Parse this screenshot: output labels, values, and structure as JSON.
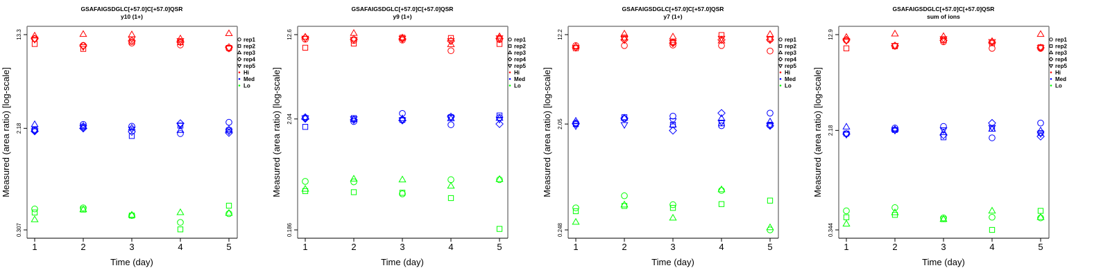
{
  "chart_data": [
    {
      "type": "scatter",
      "title": "GSAFAIGSDGLC[+57.0]C[+57.0]QSR",
      "subtitle": "y10 (1+)",
      "xlabel": "Time (day)",
      "ylabel": "Measured (area ratio) [log-scale]",
      "x_ticks": [
        "1",
        "2",
        "3",
        "4",
        "5"
      ],
      "y_ticks": [
        {
          "value": 13.3,
          "label": "13.3"
        },
        {
          "value": 2.18,
          "label": "2.18"
        },
        {
          "value": 0.307,
          "label": "0.307"
        }
      ],
      "ylim_log": [
        0.28,
        14.5
      ],
      "series": [
        {
          "name": "Hi",
          "color": "#ff0000",
          "points": {
            "rep1": [
              12.3,
              10.8,
              11.3,
              10.9,
              10.2
            ],
            "rep2": [
              11.1,
              10.1,
              11.6,
              11.5,
              10.3
            ],
            "rep3": [
              13.0,
              13.4,
              13.3,
              12.3,
              13.6
            ],
            "rep4": [
              12.3,
              10.7,
              11.8,
              11.5,
              10.4
            ],
            "rep5": [
              12.1,
              10.5,
              12.2,
              11.8,
              10.2
            ]
          }
        },
        {
          "name": "Med",
          "color": "#0000ff",
          "points": {
            "rep1": [
              2.1,
              2.35,
              2.27,
              1.97,
              2.45
            ],
            "rep2": [
              2.12,
              2.25,
              1.88,
              2.3,
              2.1
            ],
            "rep3": [
              2.35,
              2.28,
              2.2,
              2.1,
              2.15
            ],
            "rep4": [
              2.06,
              2.18,
              2.04,
              2.4,
              2.0
            ],
            "rep5": [
              2.07,
              2.2,
              2.14,
              2.3,
              2.06
            ]
          }
        },
        {
          "name": "Lo",
          "color": "#00ff00",
          "points": {
            "rep1": [
              0.46,
              0.47,
              0.405,
              0.355,
              0.42
            ],
            "rep2": [
              0.43,
              0.455,
              0.405,
              0.31,
              0.49
            ],
            "rep3": [
              0.375,
              0.455,
              0.41,
              0.43,
              0.425
            ]
          }
        }
      ]
    },
    {
      "type": "scatter",
      "title": "GSAFAIGSDGLC[+57.0]C[+57.0]QSR",
      "subtitle": "y9 (1+)",
      "xlabel": "Time (day)",
      "ylabel": "Measured (area ratio) [log-scale]",
      "x_ticks": [
        "1",
        "2",
        "3",
        "4",
        "5"
      ],
      "y_ticks": [
        {
          "value": 12.6,
          "label": "12.6"
        },
        {
          "value": 2.04,
          "label": "2.04"
        },
        {
          "value": 0.186,
          "label": "0.186"
        }
      ],
      "ylim_log": [
        0.17,
        13.8
      ],
      "series": [
        {
          "name": "Hi",
          "color": "#ff0000",
          "points": {
            "rep1": [
              11.4,
              11.1,
              11.2,
              8.9,
              11.3
            ],
            "rep2": [
              9.5,
              10.4,
              11.8,
              11.7,
              10.3
            ],
            "rep3": [
              12.0,
              13.0,
              11.8,
              10.2,
              12.1
            ],
            "rep4": [
              11.8,
              11.4,
              11.5,
              11.0,
              11.6
            ],
            "rep5": [
              11.6,
              11.3,
              11.6,
              11.0,
              11.7
            ]
          }
        },
        {
          "name": "Med",
          "color": "#0000ff",
          "points": {
            "rep1": [
              2.1,
              1.93,
              2.3,
              1.8,
              2.1
            ],
            "rep2": [
              1.72,
              2.08,
              2.0,
              2.12,
              2.2
            ],
            "rep3": [
              2.12,
              2.02,
              2.06,
              2.06,
              2.08
            ],
            "rep4": [
              2.05,
              2.0,
              1.98,
              2.14,
              1.83
            ],
            "rep5": [
              2.08,
              2.04,
              1.99,
              2.1,
              2.02
            ]
          }
        },
        {
          "name": "Lo",
          "color": "#00ff00",
          "points": {
            "rep1": [
              0.53,
              0.525,
              0.405,
              0.55,
              0.55
            ],
            "rep2": [
              0.43,
              0.42,
              0.415,
              0.37,
              0.19
            ],
            "rep3": [
              0.45,
              0.56,
              0.55,
              0.48,
              0.555
            ]
          }
        }
      ]
    },
    {
      "type": "scatter",
      "title": "GSAFAIGSDGLC[+57.0]C[+57.0]QSR",
      "subtitle": "y7 (1+)",
      "xlabel": "Time (day)",
      "ylabel": "Measured (area ratio) [log-scale]",
      "x_ticks": [
        "1",
        "2",
        "3",
        "4",
        "5"
      ],
      "y_ticks": [
        {
          "value": 12.2,
          "label": "12.2"
        },
        {
          "value": 2.05,
          "label": "2.05"
        },
        {
          "value": 0.248,
          "label": "0.248"
        }
      ],
      "ylim_log": [
        0.225,
        13.4
      ],
      "series": [
        {
          "name": "Hi",
          "color": "#ff0000",
          "points": {
            "rep1": [
              9.8,
              9.8,
              9.9,
              9.8,
              8.8
            ],
            "rep2": [
              9.3,
              11.5,
              10.5,
              12.1,
              11.2
            ],
            "rep3": [
              9.6,
              12.4,
              11.7,
              10.8,
              12.3
            ],
            "rep4": [
              9.5,
              11.0,
              10.3,
              11.0,
              11.0
            ],
            "rep5": [
              9.4,
              11.2,
              10.4,
              11.3,
              11.2
            ]
          }
        },
        {
          "name": "Med",
          "color": "#0000ff",
          "points": {
            "rep1": [
              2.1,
              2.28,
              2.4,
              1.98,
              2.55
            ],
            "rep2": [
              2.05,
              2.35,
              2.02,
              2.08,
              2.02
            ],
            "rep3": [
              2.18,
              2.32,
              2.02,
              2.3,
              2.15
            ],
            "rep4": [
              2.06,
              2.3,
              1.8,
              2.55,
              1.98
            ],
            "rep5": [
              1.97,
              2.02,
              2.18,
              2.12,
              2.0
            ]
          }
        },
        {
          "name": "Lo",
          "color": "#00ff00",
          "points": {
            "rep1": [
              0.385,
              0.49,
              0.41,
              0.545,
              0.248
            ],
            "rep2": [
              0.36,
              0.4,
              0.385,
              0.415,
              0.445
            ],
            "rep3": [
              0.29,
              0.41,
              0.315,
              0.555,
              0.26
            ]
          }
        }
      ]
    },
    {
      "type": "scatter",
      "title": "GSAFAIGSDGLC[+57.0]C[+57.0]QSR",
      "subtitle": "sum of ions",
      "xlabel": "Time (day)",
      "ylabel": "Measured (area ratio) [log-scale]",
      "x_ticks": [
        "1",
        "2",
        "3",
        "4",
        "5"
      ],
      "y_ticks": [
        {
          "value": 12.9,
          "label": "12.9"
        },
        {
          "value": 2.18,
          "label": "2.18"
        },
        {
          "value": 0.344,
          "label": "0.344"
        }
      ],
      "ylim_log": [
        0.315,
        14.1
      ],
      "series": [
        {
          "name": "Hi",
          "color": "#ff0000",
          "points": {
            "rep1": [
              11.6,
              10.4,
              11.3,
              10.0,
              10.0
            ],
            "rep2": [
              10.0,
              10.4,
              11.7,
              11.0,
              10.2
            ],
            "rep3": [
              12.3,
              13.1,
              12.5,
              11.4,
              13.0
            ],
            "rep4": [
              11.7,
              10.5,
              11.6,
              11.2,
              10.1
            ],
            "rep5": [
              11.5,
              10.5,
              11.9,
              11.3,
              10.1
            ]
          }
        },
        {
          "name": "Med",
          "color": "#0000ff",
          "points": {
            "rep1": [
              2.05,
              2.28,
              2.35,
              1.9,
              2.5
            ],
            "rep2": [
              2.06,
              2.2,
              1.92,
              2.25,
              2.08
            ],
            "rep3": [
              2.33,
              2.23,
              2.1,
              2.24,
              2.17
            ],
            "rep4": [
              2.04,
              2.2,
              2.0,
              2.5,
              1.95
            ],
            "rep5": [
              2.02,
              2.18,
              2.2,
              2.3,
              2.05
            ]
          }
        },
        {
          "name": "Lo",
          "color": "#00ff00",
          "points": {
            "rep1": [
              0.49,
              0.52,
              0.43,
              0.435,
              0.43
            ],
            "rep2": [
              0.435,
              0.455,
              0.42,
              0.344,
              0.49
            ],
            "rep3": [
              0.385,
              0.475,
              0.42,
              0.49,
              0.435
            ]
          }
        }
      ]
    }
  ],
  "legend": {
    "position": "right",
    "shape_entries": [
      {
        "label": "rep1",
        "shape": "circle"
      },
      {
        "label": "rep2",
        "shape": "square"
      },
      {
        "label": "rep3",
        "shape": "triangle-up"
      },
      {
        "label": "rep4",
        "shape": "diamond"
      },
      {
        "label": "rep5",
        "shape": "triangle-down"
      }
    ],
    "color_entries": [
      {
        "label": "Hi",
        "color": "#ff0000"
      },
      {
        "label": "Med",
        "color": "#0000ff"
      },
      {
        "label": "Lo",
        "color": "#00ff00"
      }
    ]
  }
}
